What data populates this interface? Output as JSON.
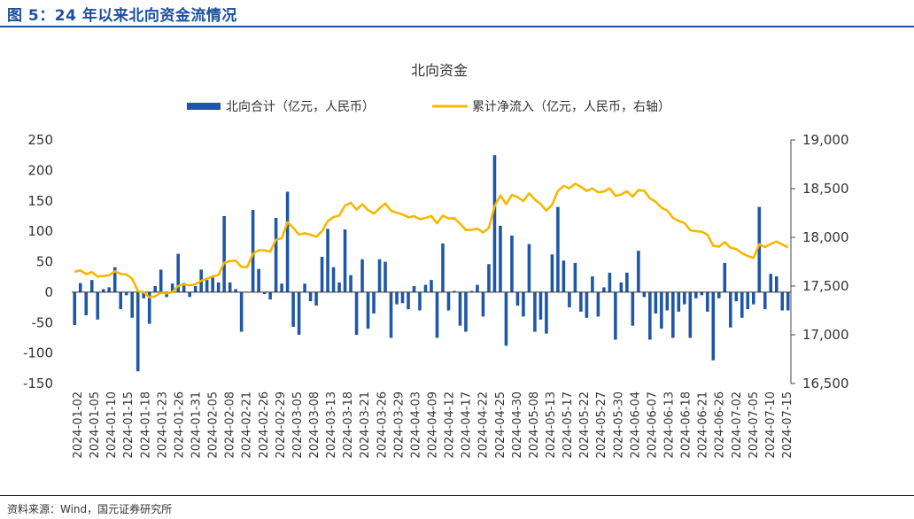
{
  "header": {
    "figure_title": "图 5：24 年以来北向资金流情况"
  },
  "footer": {
    "source": "资料来源：Wind，国元证券研究所"
  },
  "chart_data": {
    "type": "bar+line",
    "title": "北向资金",
    "legend_position": "top-center",
    "grid": false,
    "left_axis": {
      "ylim": [
        -150,
        250
      ],
      "ticks": [
        "250",
        "200",
        "150",
        "100",
        "50",
        "0",
        "-50",
        "-100",
        "-150"
      ]
    },
    "right_axis": {
      "ylim": [
        16500,
        19000
      ],
      "ticks": [
        "19,000",
        "18,500",
        "18,000",
        "17,500",
        "17,000",
        "16,500"
      ]
    },
    "x_tick_labels": [
      "2024-01-02",
      "2024-01-05",
      "2024-01-10",
      "2024-01-15",
      "2024-01-18",
      "2024-01-23",
      "2024-01-26",
      "2024-01-31",
      "2024-02-05",
      "2024-02-08",
      "2024-02-21",
      "2024-02-26",
      "2024-02-29",
      "2024-03-05",
      "2024-03-08",
      "2024-03-13",
      "2024-03-18",
      "2024-03-21",
      "2024-03-26",
      "2024-03-29",
      "2024-04-03",
      "2024-04-09",
      "2024-04-12",
      "2024-04-17",
      "2024-04-22",
      "2024-04-25",
      "2024-04-30",
      "2024-05-08",
      "2024-05-13",
      "2024-05-17",
      "2024-05-22",
      "2024-05-27",
      "2024-05-30",
      "2024-06-04",
      "2024-06-07",
      "2024-06-13",
      "2024-06-18",
      "2024-06-21",
      "2024-06-26",
      "2024-07-02",
      "2024-07-05",
      "2024-07-10",
      "2024-07-15"
    ],
    "series": [
      {
        "name": "北向合计（亿元，人民币）",
        "kind": "bar",
        "axis": "left",
        "color": "#1f56a5",
        "values": [
          -54,
          15,
          -38,
          20,
          -45,
          5,
          8,
          41,
          -28,
          -5,
          -42,
          -130,
          -10,
          -52,
          10,
          37,
          -8,
          14,
          63,
          15,
          -8,
          10,
          37,
          20,
          24,
          16,
          125,
          16,
          5,
          -65,
          0,
          135,
          38,
          -3,
          -12,
          122,
          14,
          165,
          -57,
          -70,
          14,
          -15,
          -22,
          58,
          104,
          41,
          16,
          103,
          28,
          -70,
          54,
          -60,
          -35,
          54,
          50,
          -75,
          -20,
          -18,
          -28,
          10,
          -30,
          12,
          20,
          -75,
          80,
          -30,
          2,
          -55,
          -65,
          2,
          12,
          -40,
          46,
          225,
          109,
          -88,
          93,
          -22,
          -40,
          79,
          -65,
          -45,
          -68,
          62,
          140,
          52,
          -25,
          48,
          -32,
          -42,
          26,
          -40,
          8,
          32,
          -78,
          16,
          32,
          -55,
          68,
          -8,
          -78,
          -35,
          -60,
          -30,
          -75,
          -32,
          -20,
          -75,
          -10,
          -5,
          -32,
          -112,
          -10,
          48,
          -58,
          -15,
          -42,
          -28,
          -20,
          140,
          -28,
          30,
          26,
          -30,
          -30
        ]
      },
      {
        "name": "累计净流入（亿元，人民币，右轴）",
        "kind": "line",
        "axis": "right",
        "color": "#f5b800",
        "values": [
          17646,
          17661,
          17623,
          17643,
          17598,
          17603,
          17611,
          17652,
          17624,
          17619,
          17577,
          17447,
          17437,
          17385,
          17395,
          17432,
          17424,
          17438,
          17501,
          17516,
          17508,
          17518,
          17555,
          17575,
          17599,
          17615,
          17740,
          17756,
          17761,
          17696,
          17696,
          17831,
          17869,
          17866,
          17854,
          17976,
          17990,
          18155,
          18098,
          18028,
          18042,
          18027,
          18005,
          18063,
          18167,
          18208,
          18224,
          18327,
          18355,
          18285,
          18339,
          18279,
          18244,
          18298,
          18348,
          18273,
          18253,
          18235,
          18207,
          18217,
          18187,
          18199,
          18219,
          18144,
          18224,
          18194,
          18196,
          18141,
          18076,
          18078,
          18090,
          18050,
          18096,
          18321,
          18430,
          18342,
          18435,
          18413,
          18373,
          18452,
          18387,
          18342,
          18274,
          18336,
          18476,
          18528,
          18503,
          18551,
          18519,
          18477,
          18503,
          18463,
          18471,
          18503,
          18425,
          18441,
          18473,
          18418,
          18486,
          18478,
          18400,
          18365,
          18305,
          18275,
          18200,
          18168,
          18148,
          18073,
          18063,
          18058,
          18026,
          17914,
          17904,
          17952,
          17894,
          17879,
          17837,
          17809,
          17789,
          17929,
          17901,
          17931,
          17957,
          17927,
          17897
        ]
      }
    ]
  }
}
